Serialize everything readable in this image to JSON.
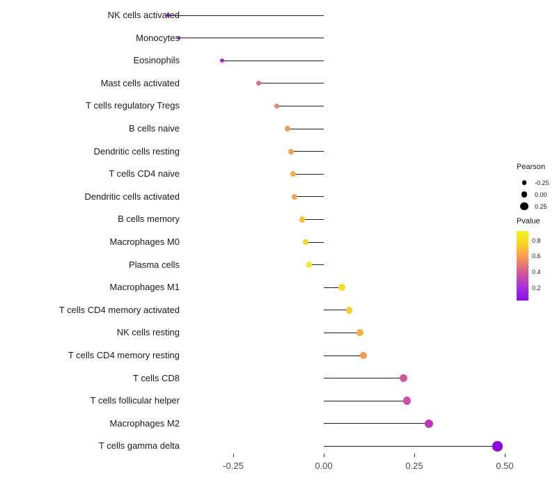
{
  "chart_data": {
    "type": "lollipop",
    "title": "",
    "xlabel": "",
    "ylabel": "",
    "grid": false,
    "x_ticks": [
      -0.25,
      0.0,
      0.25,
      0.5
    ],
    "x_tick_labels": [
      "-0.25",
      "0.00",
      "0.25",
      "0.50"
    ],
    "xlim": [
      -0.45,
      0.52
    ],
    "points": [
      {
        "label": "NK cells activated",
        "pearson": -0.43,
        "pvalue": 0.05,
        "color": "#7e0dc8"
      },
      {
        "label": "Monocytes",
        "pearson": -0.4,
        "pvalue": 0.08,
        "color": "#8c10cc"
      },
      {
        "label": "Eosinophils",
        "pearson": -0.28,
        "pvalue": 0.2,
        "color": "#a52cc4"
      },
      {
        "label": "Mast cells activated",
        "pearson": -0.18,
        "pvalue": 0.45,
        "color": "#dc6a94"
      },
      {
        "label": "T cells regulatory  Tregs",
        "pearson": -0.13,
        "pvalue": 0.55,
        "color": "#ec8372"
      },
      {
        "label": "B cells naive",
        "pearson": -0.1,
        "pvalue": 0.62,
        "color": "#f49b50"
      },
      {
        "label": "Dendritic cells resting",
        "pearson": -0.09,
        "pvalue": 0.63,
        "color": "#f59e4b"
      },
      {
        "label": "T cells CD4 naive",
        "pearson": -0.085,
        "pvalue": 0.68,
        "color": "#f9ac3e"
      },
      {
        "label": "Dendritic cells activated",
        "pearson": -0.08,
        "pvalue": 0.65,
        "color": "#f7a447"
      },
      {
        "label": "B cells memory",
        "pearson": -0.06,
        "pvalue": 0.75,
        "color": "#fbc22d"
      },
      {
        "label": "Macrophages M0",
        "pearson": -0.05,
        "pvalue": 0.8,
        "color": "#f7d623"
      },
      {
        "label": "Plasma cells",
        "pearson": -0.04,
        "pvalue": 0.85,
        "color": "#f2ea20"
      },
      {
        "label": "Macrophages M1",
        "pearson": 0.05,
        "pvalue": 0.82,
        "color": "#f5de22"
      },
      {
        "label": "T cells CD4 memory activated",
        "pearson": 0.07,
        "pvalue": 0.78,
        "color": "#facb28"
      },
      {
        "label": "NK cells resting",
        "pearson": 0.1,
        "pvalue": 0.68,
        "color": "#f9ac3e"
      },
      {
        "label": "T cells CD4 memory resting",
        "pearson": 0.11,
        "pvalue": 0.62,
        "color": "#f49b50"
      },
      {
        "label": "T cells CD8",
        "pearson": 0.22,
        "pvalue": 0.38,
        "color": "#d6569a"
      },
      {
        "label": "T cells follicular helper",
        "pearson": 0.23,
        "pvalue": 0.36,
        "color": "#d24fa0"
      },
      {
        "label": "Macrophages M2",
        "pearson": 0.29,
        "pvalue": 0.25,
        "color": "#bc34b7"
      },
      {
        "label": "T cells gamma delta",
        "pearson": 0.48,
        "pvalue": 0.03,
        "color": "#8a07e0"
      }
    ],
    "legend_pearson": {
      "title": "Pearson",
      "items": [
        {
          "label": "-0.25",
          "value": -0.25
        },
        {
          "label": "0.00",
          "value": 0.0
        },
        {
          "label": "0.25",
          "value": 0.25
        }
      ]
    },
    "legend_pvalue": {
      "title": "Pvalue",
      "range": [
        0.04,
        0.92
      ],
      "gradient": [
        "#f0f421",
        "#fcce25",
        "#f59057",
        "#d6569a",
        "#a832dc",
        "#8a0be8"
      ],
      "ticks": [
        {
          "label": "0.8",
          "value": 0.8
        },
        {
          "label": "0.6",
          "value": 0.6
        },
        {
          "label": "0.4",
          "value": 0.4
        },
        {
          "label": "0.2",
          "value": 0.2
        }
      ]
    }
  }
}
